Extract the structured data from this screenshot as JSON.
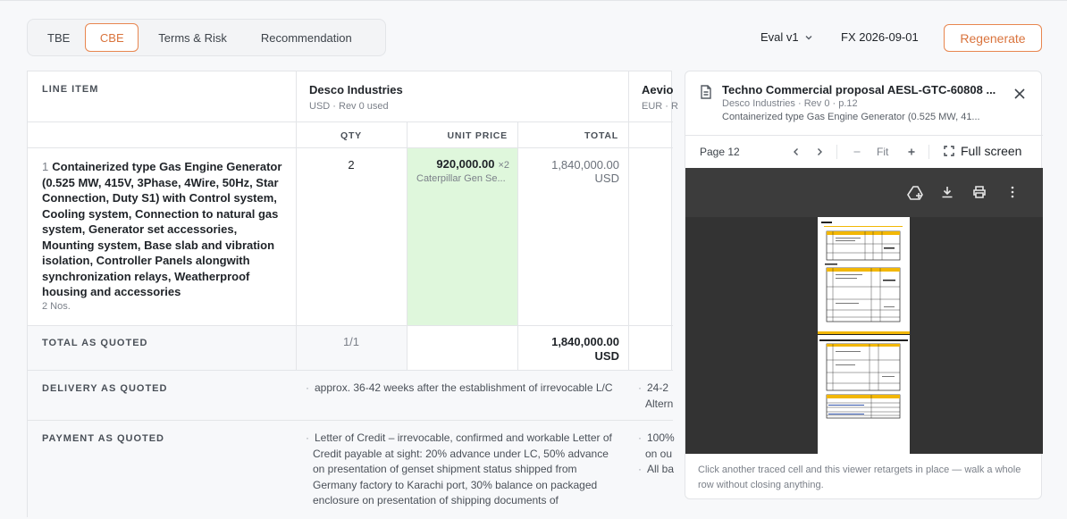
{
  "tabs": [
    "TBE",
    "CBE",
    "Terms & Risk",
    "Recommendation"
  ],
  "active_tab": "CBE",
  "header": {
    "eval_label": "Eval v1",
    "fx_label": "FX 2026-09-01",
    "regenerate_label": "Regenerate"
  },
  "table": {
    "line_item_header": "LINE ITEM",
    "vendors": [
      {
        "name": "Desco Industries",
        "meta": "USD · Rev 0 used"
      },
      {
        "name": "Aevio",
        "meta": "EUR · R"
      }
    ],
    "col_headers": {
      "qty": "QTY",
      "unit_price": "UNIT PRICE",
      "total": "TOTAL"
    },
    "item": {
      "number": "1",
      "description": "Containerized type Gas Engine Generator (0.525 MW, 415V, 3Phase, 4Wire, 50Hz, Star Connection, Duty S1) with Control system, Cooling system, Connection to natural gas system, Generator set accessories, Mounting system, Base slab and vibration isolation, Controller Panels alongwith synchronization relays, Weatherproof housing and accessories",
      "qty_note": "2 Nos.",
      "qty": "2",
      "unit_price": "920,000.00",
      "multiplier": "×2",
      "unit_price_note": "Caterpillar Gen Se...",
      "total": "1,840,000.00",
      "total_currency": "USD"
    },
    "total_row": {
      "label": "TOTAL AS QUOTED",
      "count": "1/1",
      "total": "1,840,000.00",
      "currency": "USD"
    },
    "delivery_row": {
      "label": "DELIVERY AS QUOTED",
      "desco": "approx. 36-42 weeks after the establishment of irrevocable L/C",
      "aevio_line1": "24-2",
      "aevio_line2": "Altern"
    },
    "payment_row": {
      "label": "PAYMENT AS QUOTED",
      "desco": "Letter of Credit – irrevocable, confirmed and workable Letter of Credit payable at sight: 20% advance under LC, 50% advance on presentation of genset shipment status shipped from Germany factory to Karachi port, 30% balance on packaged enclosure on presentation of shipping documents of",
      "aevio_line1": "100%",
      "aevio_line2": "on ou",
      "aevio_line3": "All ba"
    }
  },
  "viewer": {
    "title": "Techno Commercial proposal AESL-GTC-60808 ...",
    "meta": "Desco Industries · Rev 0 · p.12",
    "snippet": "Containerized type Gas Engine Generator (0.525 MW, 41...",
    "page_label": "Page 12",
    "fit_label": "Fit",
    "fullscreen_label": "Full screen",
    "footer": "Click another traced cell and this viewer retargets in place — walk a whole row without closing anything."
  },
  "colors": {
    "accent": "#e8864f",
    "highlight": "#dff7dc",
    "pdf_yellow": "#f2b705"
  }
}
